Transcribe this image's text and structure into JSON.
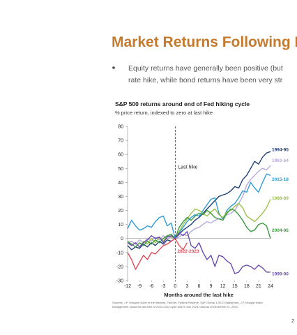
{
  "slide": {
    "title": "Market Returns Following I",
    "bullet_lines": [
      "Equity returns have generally been positive (but",
      "rate hike, while bond returns have been very str"
    ],
    "source_lines": [
      "Sources: J.P. Morgan Guide to the Markets, FactSet, Federal Reserve, S&P Global, LSEG Datastream, J.P. Morgan Asset",
      "Management. Assumes last hike of 2022-2023 cycle was in July 2023. Data as of December 31, 2023"
    ],
    "page": "2"
  },
  "chart_data": {
    "type": "line",
    "title": "S&P 500 returns around end of Fed hiking cycle",
    "subtitle": "% price return, indexed to zero at last hike",
    "x_label": "Months around the last hike",
    "annotation": "Last hike",
    "annotation_x": 0,
    "x": [
      -12,
      -11,
      -10,
      -9,
      -8,
      -7,
      -6,
      -5,
      -4,
      -3,
      -2,
      -1,
      0,
      1,
      2,
      3,
      4,
      5,
      6,
      7,
      8,
      9,
      10,
      11,
      12,
      13,
      14,
      15,
      16,
      17,
      18,
      19,
      20,
      21,
      22,
      23,
      24
    ],
    "xlim": [
      -12,
      24
    ],
    "xticks": [
      -12,
      -9,
      -6,
      -3,
      0,
      3,
      6,
      9,
      12,
      15,
      18,
      21,
      24
    ],
    "ylim": [
      -30,
      80
    ],
    "yticks": [
      -30,
      -20,
      -10,
      0,
      10,
      20,
      30,
      40,
      50,
      60,
      70,
      80
    ],
    "series": [
      {
        "name": "1994-95",
        "color": "#1f3f7a",
        "values": [
          -5,
          -8,
          -6,
          -7,
          -4,
          -6,
          -3,
          -5,
          -2,
          -4,
          -1,
          -2,
          0,
          3,
          6,
          8,
          10,
          13,
          15,
          18,
          21,
          24,
          27,
          30,
          31,
          32,
          34,
          37,
          36,
          42,
          45,
          50,
          55,
          53,
          58,
          61,
          62
        ]
      },
      {
        "name": "1963-64",
        "color": "#b7a8dc",
        "values": [
          -3,
          -2,
          -4,
          -1,
          -3,
          0,
          -2,
          1,
          -1,
          2,
          0,
          1,
          0,
          1,
          3,
          2,
          5,
          7,
          8,
          10,
          12,
          11,
          13,
          14,
          15,
          17,
          18,
          20,
          25,
          30,
          38,
          42,
          45,
          48,
          50,
          49,
          52
        ]
      },
      {
        "name": "2015-18",
        "color": "#2e9bd6",
        "values": [
          7,
          13,
          9,
          6,
          7,
          9,
          8,
          12,
          15,
          16,
          9,
          11,
          0,
          4,
          8,
          12,
          15,
          17,
          16,
          20,
          24,
          28,
          29,
          18,
          14,
          20,
          23,
          25,
          29,
          34,
          33,
          40,
          36,
          33,
          40,
          46,
          45
        ]
      },
      {
        "name": "1988-89",
        "color": "#9cc14a",
        "values": [
          -2,
          -5,
          -3,
          -6,
          -2,
          -4,
          0,
          -3,
          1,
          -2,
          2,
          1,
          0,
          5,
          10,
          14,
          18,
          21,
          20,
          18,
          16,
          19,
          21,
          17,
          15,
          19,
          20,
          23,
          25,
          22,
          16,
          14,
          12,
          15,
          18,
          22,
          28
        ]
      },
      {
        "name": "2004-06",
        "color": "#3a9a3e",
        "values": [
          -2,
          -4,
          -6,
          -3,
          -5,
          -2,
          -4,
          -1,
          -3,
          0,
          2,
          3,
          0,
          8,
          12,
          15,
          13,
          16,
          18,
          17,
          20,
          18,
          15,
          14,
          13,
          18,
          21,
          20,
          17,
          13,
          8,
          5,
          6,
          10,
          11,
          9,
          0
        ]
      },
      {
        "name": "2022-2023",
        "color": "#e04a57",
        "values": [
          -10,
          -15,
          -22,
          -17,
          -12,
          -15,
          -10,
          -11,
          -8,
          -5,
          -4,
          -2,
          0,
          -5,
          -8,
          -3,
          null,
          null,
          null,
          null,
          null,
          null,
          null,
          null,
          null,
          null,
          null,
          null,
          null,
          null,
          null,
          null,
          null,
          null,
          null,
          null,
          null
        ]
      },
      {
        "name": "1999-00",
        "color": "#6a4cb0",
        "values": [
          -3,
          -5,
          -3,
          -6,
          -3,
          -1,
          2,
          0,
          1,
          -3,
          1,
          2,
          0,
          4,
          2,
          5,
          -5,
          -7,
          -3,
          -10,
          -15,
          -12,
          -20,
          -12,
          -13,
          -16,
          -18,
          -25,
          -24,
          -20,
          -19,
          -20,
          -22,
          -19,
          -21,
          -24,
          -24
        ]
      }
    ]
  }
}
